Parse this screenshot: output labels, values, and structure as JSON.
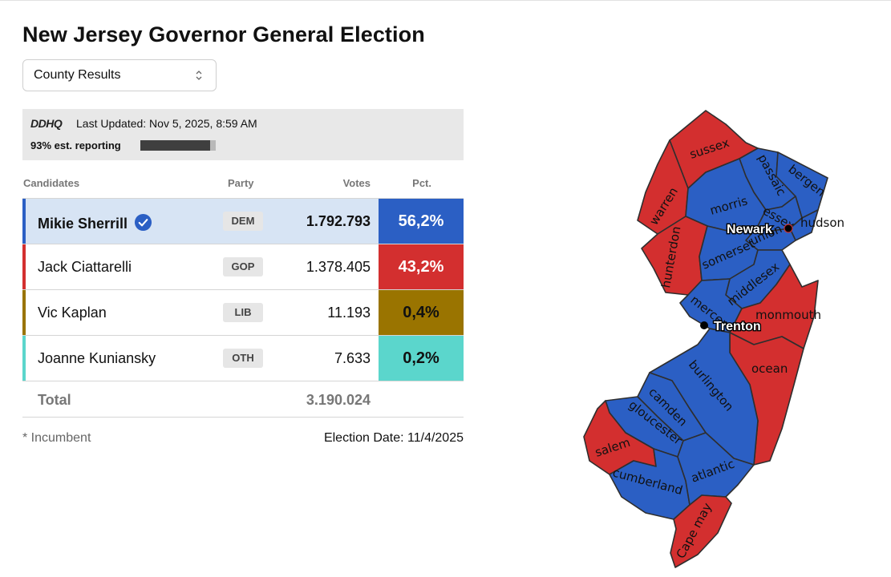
{
  "title": "New Jersey Governor General Election",
  "view_select": {
    "value": "County Results"
  },
  "update_panel": {
    "logo": "DDHQ",
    "last_updated": "Last Updated: Nov 5, 2025, 8:59 AM",
    "reporting_text": "93% est. reporting",
    "reporting_fraction": 0.93
  },
  "table": {
    "headers": {
      "candidates": "Candidates",
      "party": "Party",
      "votes": "Votes",
      "pct": "Pct."
    },
    "rows": [
      {
        "name": "Mikie Sherrill",
        "party": "DEM",
        "votes": "1.792.793",
        "pct": "56,2%",
        "color": "#2b5fc4",
        "pct_text_color": "#ffffff",
        "winner": true
      },
      {
        "name": "Jack Ciattarelli",
        "party": "GOP",
        "votes": "1.378.405",
        "pct": "43,2%",
        "color": "#d32f2f",
        "pct_text_color": "#ffffff",
        "winner": false
      },
      {
        "name": "Vic Kaplan",
        "party": "LIB",
        "votes": "11.193",
        "pct": "0,4%",
        "color": "#9a7400",
        "pct_text_color": "#111111",
        "winner": false
      },
      {
        "name": "Joanne Kuniansky",
        "party": "OTH",
        "votes": "7.633",
        "pct": "0,2%",
        "color": "#5bd6cc",
        "pct_text_color": "#111111",
        "winner": false
      }
    ],
    "total": {
      "label": "Total",
      "votes": "3.190.024"
    }
  },
  "footer": {
    "note": "* Incumbent",
    "election_date": "Election Date: 11/4/2025"
  },
  "map": {
    "colors": {
      "dem": "#2b5fc4",
      "gop": "#d32f2f"
    },
    "counties": [
      {
        "id": "sussex",
        "label": "sussex",
        "winner": "gop"
      },
      {
        "id": "passaic",
        "label": "passaic",
        "winner": "dem"
      },
      {
        "id": "bergen",
        "label": "bergen",
        "winner": "dem"
      },
      {
        "id": "warren",
        "label": "warren",
        "winner": "gop"
      },
      {
        "id": "morris",
        "label": "morris",
        "winner": "dem"
      },
      {
        "id": "essex",
        "label": "essex",
        "winner": "dem"
      },
      {
        "id": "hudson",
        "label": "hudson",
        "winner": "dem"
      },
      {
        "id": "union",
        "label": "union",
        "winner": "dem"
      },
      {
        "id": "hunterdon",
        "label": "hunterdon",
        "winner": "gop"
      },
      {
        "id": "somerset",
        "label": "somerset",
        "winner": "dem"
      },
      {
        "id": "middlesex",
        "label": "middlesex",
        "winner": "dem"
      },
      {
        "id": "mercer",
        "label": "mercer",
        "winner": "dem"
      },
      {
        "id": "monmouth",
        "label": "monmouth",
        "winner": "gop"
      },
      {
        "id": "ocean",
        "label": "ocean",
        "winner": "gop"
      },
      {
        "id": "burlington",
        "label": "burlington",
        "winner": "dem"
      },
      {
        "id": "camden",
        "label": "camden",
        "winner": "dem"
      },
      {
        "id": "gloucester",
        "label": "gloucester",
        "winner": "dem"
      },
      {
        "id": "salem",
        "label": "salem",
        "winner": "gop"
      },
      {
        "id": "cumberland",
        "label": "cumberland",
        "winner": "dem"
      },
      {
        "id": "atlantic",
        "label": "atlantic",
        "winner": "dem"
      },
      {
        "id": "cape-may",
        "label": "Cape may",
        "winner": "gop"
      }
    ],
    "cities": [
      {
        "label": "Newark"
      },
      {
        "label": "Trenton"
      }
    ]
  }
}
